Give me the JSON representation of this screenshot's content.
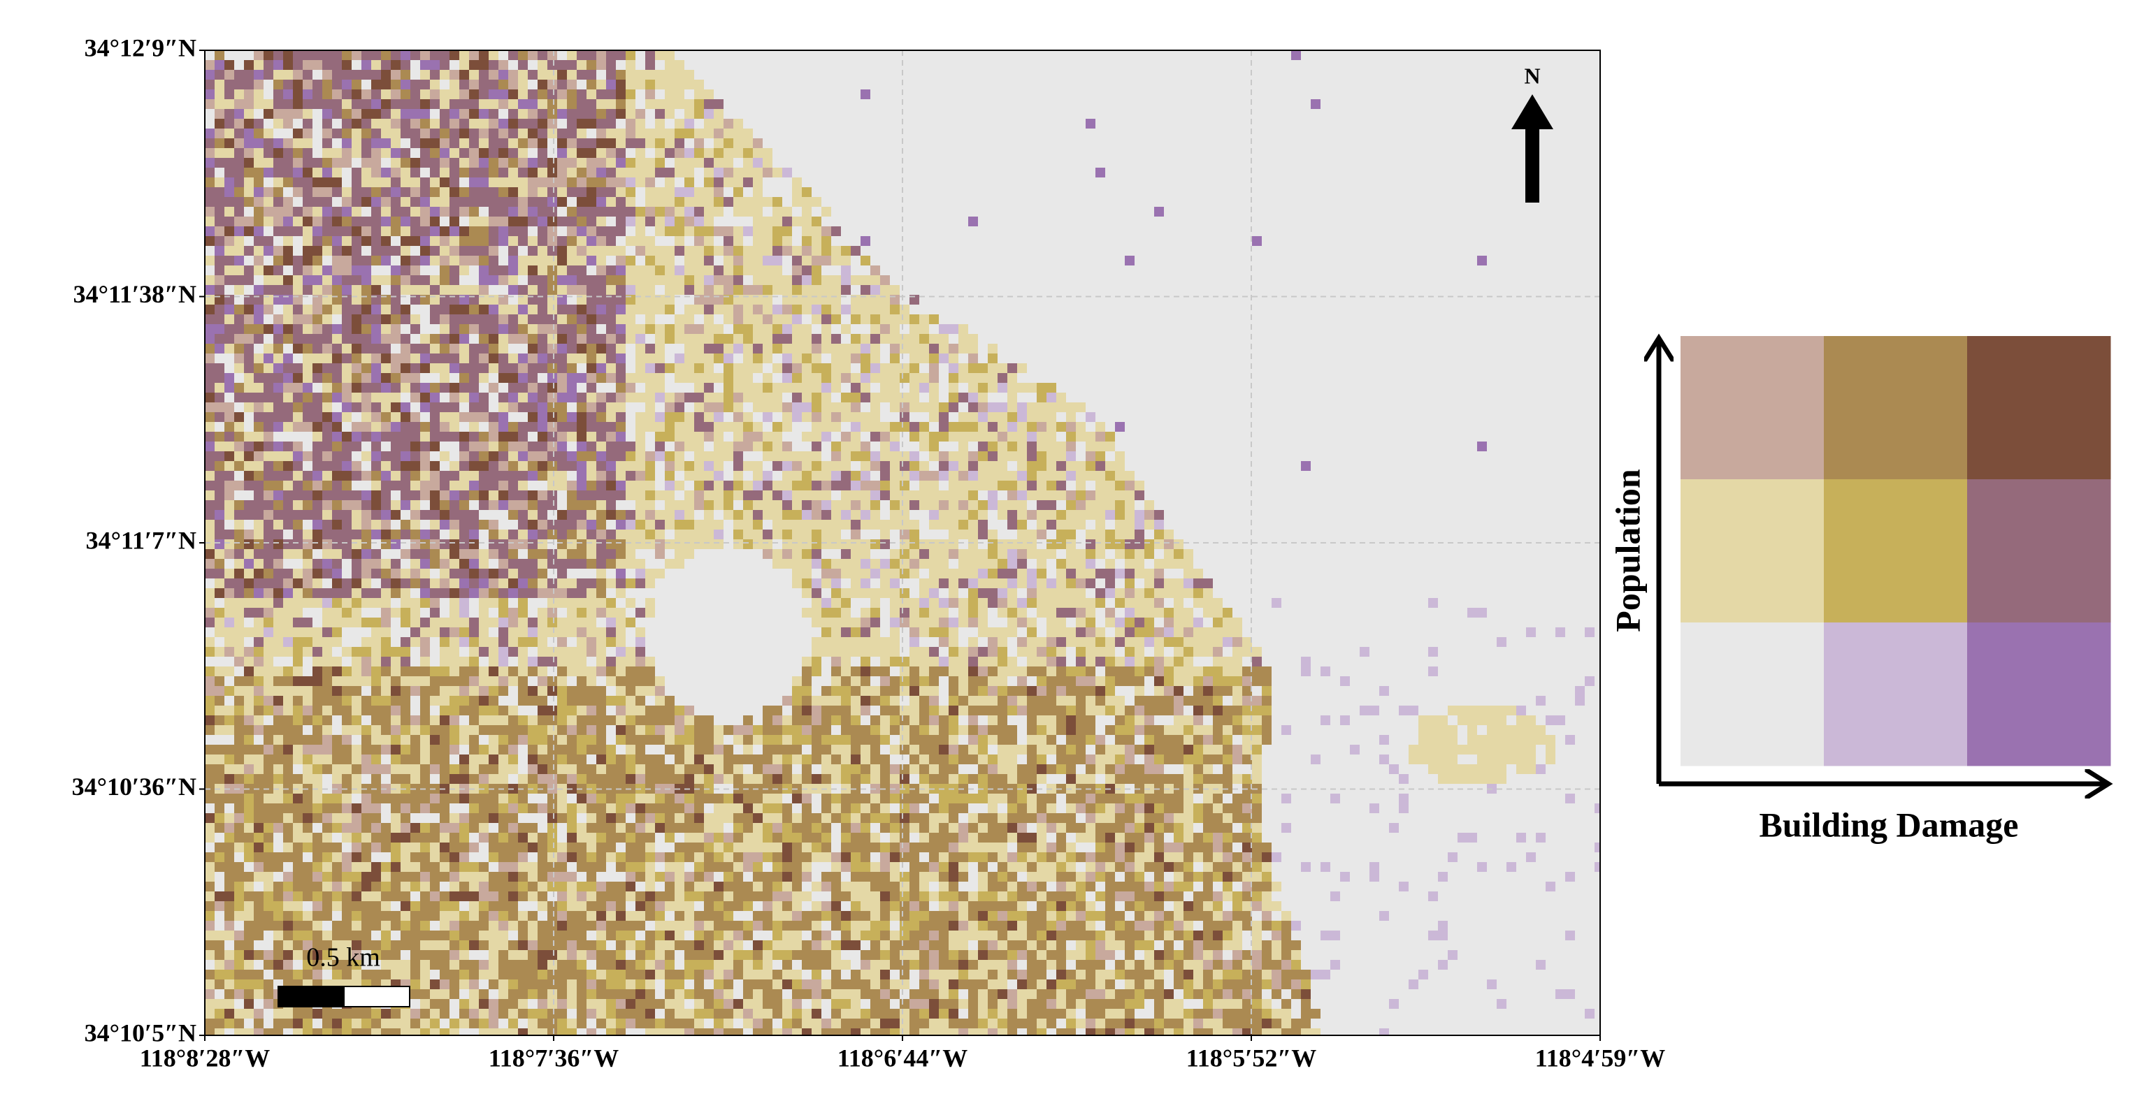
{
  "map": {
    "lat_ticks": [
      "34°12′9″N",
      "34°11′38″N",
      "34°11′7″N",
      "34°10′36″N",
      "34°10′5″N"
    ],
    "lon_ticks": [
      "118°8′28″W",
      "118°7′36″W",
      "118°6′44″W",
      "118°5′52″W",
      "118°4′59″W"
    ],
    "north_label": "N",
    "scale_label": "0.5 km"
  },
  "legend": {
    "y_label": "Population",
    "x_label": "Building Damage",
    "colors": [
      [
        "#c8a99d",
        "#ab8a52",
        "#7c4e3a"
      ],
      [
        "#e4d8a6",
        "#c7b05a",
        "#956a7b"
      ],
      [
        "#e8e8e8",
        "#cbb8d7",
        "#9a72b0"
      ]
    ]
  }
}
